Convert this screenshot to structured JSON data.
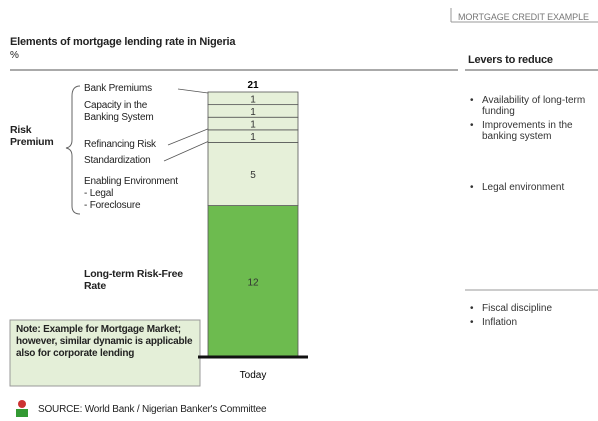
{
  "tag": "MORTGAGE CREDIT EXAMPLE",
  "chart_data": {
    "type": "bar",
    "title": "Elements of mortgage lending rate in Nigeria",
    "subtitle": "%",
    "categories": [
      "Today"
    ],
    "stacked": true,
    "series": [
      {
        "name": "Long-term Risk-Free Rate",
        "color": "#6dbb4f",
        "values": [
          12
        ]
      },
      {
        "name": "Enabling Environment",
        "notes": [
          "- Legal",
          "- Foreclosure"
        ],
        "color": "#e6f0d9",
        "values": [
          5
        ]
      },
      {
        "name": "Standardization",
        "color": "#e6f0d9",
        "values": [
          1
        ]
      },
      {
        "name": "Refinancing Risk",
        "color": "#e6f0d9",
        "values": [
          1
        ]
      },
      {
        "name": "Capacity in the Banking System",
        "color": "#e6f0d9",
        "values": [
          1
        ]
      },
      {
        "name": "Bank Premiums",
        "color": "#e6f0d9",
        "values": [
          1
        ]
      }
    ],
    "total": 21,
    "group_label": "Risk Premium"
  },
  "note": "Note: Example for Mortgage Market; however, similar dynamic is applicable also for corporate lending",
  "source": "SOURCE: World Bank / Nigerian Banker's Committee",
  "levers": {
    "title": "Levers to reduce",
    "groups": [
      [
        "Availability of long-term funding",
        "Improvements in the banking system"
      ],
      [
        "Legal environment"
      ],
      [
        "Fiscal discipline",
        "Inflation"
      ]
    ]
  }
}
